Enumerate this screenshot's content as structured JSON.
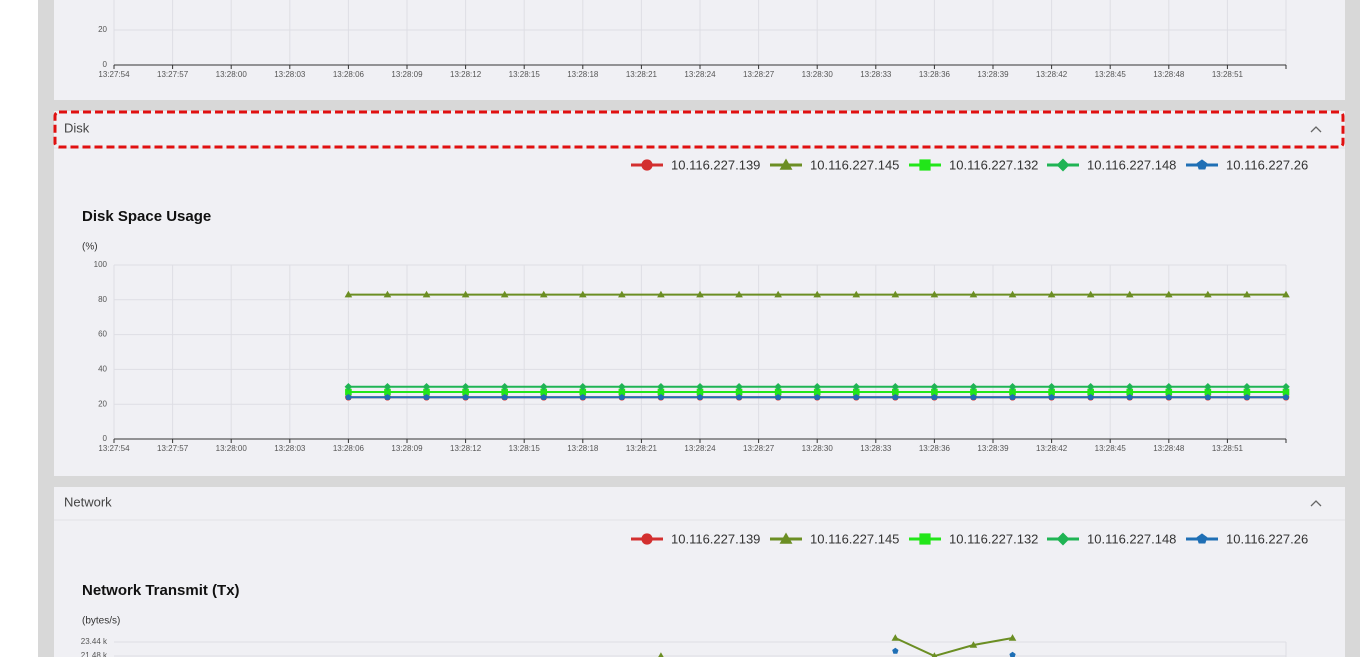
{
  "sections": [
    {
      "title": "Disk"
    },
    {
      "title": "Network"
    }
  ],
  "chart_data": [
    {
      "type": "line",
      "xlim": [
        "13:27:54",
        "13:28:54"
      ],
      "xticks": [
        "13:27:54",
        "13:27:57",
        "13:28:00",
        "13:28:03",
        "13:28:06",
        "13:28:09",
        "13:28:12",
        "13:28:15",
        "13:28:18",
        "13:28:21",
        "13:28:24",
        "13:28:27",
        "13:28:30",
        "13:28:33",
        "13:28:36",
        "13:28:39",
        "13:28:42",
        "13:28:45",
        "13:28:48",
        "13:28:51"
      ],
      "ylim": [
        0,
        100
      ],
      "yticks": [
        0,
        20
      ],
      "grid": true,
      "x": [],
      "series": []
    },
    {
      "type": "line",
      "title": "Disk Space Usage",
      "y_label": "(%)",
      "xlim": [
        "13:27:54",
        "13:28:54"
      ],
      "xticks": [
        "13:27:54",
        "13:27:57",
        "13:28:00",
        "13:28:03",
        "13:28:06",
        "13:28:09",
        "13:28:12",
        "13:28:15",
        "13:28:18",
        "13:28:21",
        "13:28:24",
        "13:28:27",
        "13:28:30",
        "13:28:33",
        "13:28:36",
        "13:28:39",
        "13:28:42",
        "13:28:45",
        "13:28:48",
        "13:28:51"
      ],
      "ylim": [
        0,
        100
      ],
      "yticks": [
        0,
        20,
        40,
        60,
        80,
        100
      ],
      "grid": true,
      "x": [
        "13:28:06",
        "13:28:08",
        "13:28:10",
        "13:28:12",
        "13:28:14",
        "13:28:16",
        "13:28:18",
        "13:28:20",
        "13:28:22",
        "13:28:24",
        "13:28:26",
        "13:28:28",
        "13:28:30",
        "13:28:32",
        "13:28:34",
        "13:28:36",
        "13:28:38",
        "13:28:40",
        "13:28:42",
        "13:28:44",
        "13:28:46",
        "13:28:48",
        "13:28:50",
        "13:28:52",
        "13:28:54"
      ],
      "series": [
        {
          "name": "10.116.227.139",
          "color": "#d32f2f",
          "marker": "circle",
          "values": [
            24,
            24,
            24,
            24,
            24,
            24,
            24,
            24,
            24,
            24,
            24,
            24,
            24,
            24,
            24,
            24,
            24,
            24,
            24,
            24,
            24,
            24,
            24,
            24,
            24
          ]
        },
        {
          "name": "10.116.227.145",
          "color": "#6b8e23",
          "marker": "triangle",
          "values": [
            83,
            83,
            83,
            83,
            83,
            83,
            83,
            83,
            83,
            83,
            83,
            83,
            83,
            83,
            83,
            83,
            83,
            83,
            83,
            83,
            83,
            83,
            83,
            83,
            83
          ]
        },
        {
          "name": "10.116.227.132",
          "color": "#22e619",
          "marker": "square",
          "values": [
            27,
            27,
            27,
            27,
            27,
            27,
            27,
            27,
            27,
            27,
            27,
            27,
            27,
            27,
            27,
            27,
            27,
            27,
            27,
            27,
            27,
            27,
            27,
            27,
            27
          ]
        },
        {
          "name": "10.116.227.148",
          "color": "#1fb454",
          "marker": "diamond",
          "values": [
            30,
            30,
            30,
            30,
            30,
            30,
            30,
            30,
            30,
            30,
            30,
            30,
            30,
            30,
            30,
            30,
            30,
            30,
            30,
            30,
            30,
            30,
            30,
            30,
            30
          ]
        },
        {
          "name": "10.116.227.26",
          "color": "#1f6fb5",
          "marker": "pentagon",
          "values": [
            24,
            24,
            24,
            24,
            24,
            24,
            24,
            24,
            24,
            24,
            24,
            24,
            24,
            24,
            24,
            24,
            24,
            24,
            24,
            24,
            24,
            24,
            24,
            24,
            24
          ]
        }
      ]
    },
    {
      "type": "line",
      "title": "Network Transmit (Tx)",
      "y_label": "(bytes/s)",
      "xlim": [
        "13:27:54",
        "13:28:54"
      ],
      "xticks": [],
      "ylim": [
        0,
        23440
      ],
      "yticks": [
        {
          "value": 23440,
          "label": "23.44 k"
        },
        {
          "value": 21480,
          "label": "21.48 k"
        }
      ],
      "grid": true,
      "x": [
        "13:28:06",
        "13:28:08",
        "13:28:10",
        "13:28:12",
        "13:28:14",
        "13:28:16",
        "13:28:18",
        "13:28:20",
        "13:28:22",
        "13:28:24",
        "13:28:26",
        "13:28:28",
        "13:28:30",
        "13:28:32",
        "13:28:34",
        "13:28:36",
        "13:28:38",
        "13:28:40",
        "13:28:42",
        "13:28:44",
        "13:28:46",
        "13:28:48",
        "13:28:50",
        "13:28:52",
        "13:28:54"
      ],
      "series": [
        {
          "name": "10.116.227.139",
          "color": "#d32f2f",
          "marker": "circle",
          "values": [
            null,
            null,
            null,
            null,
            null,
            null,
            null,
            null,
            null,
            null,
            null,
            null,
            null,
            null,
            null,
            null,
            null,
            null,
            null,
            null,
            null,
            null,
            null,
            null,
            null
          ]
        },
        {
          "name": "10.116.227.145",
          "color": "#6b8e23",
          "marker": "triangle",
          "values": [
            null,
            null,
            null,
            null,
            null,
            null,
            null,
            null,
            21480,
            null,
            null,
            null,
            null,
            null,
            24000,
            21480,
            23020,
            24000,
            null,
            null,
            null,
            null,
            null,
            null,
            null
          ]
        },
        {
          "name": "10.116.227.132",
          "color": "#22e619",
          "marker": "square",
          "values": [
            null,
            null,
            null,
            null,
            null,
            null,
            null,
            null,
            null,
            null,
            null,
            null,
            null,
            null,
            null,
            null,
            null,
            null,
            null,
            null,
            null,
            null,
            null,
            null,
            null
          ]
        },
        {
          "name": "10.116.227.148",
          "color": "#1fb454",
          "marker": "diamond",
          "values": [
            null,
            null,
            null,
            null,
            null,
            null,
            null,
            null,
            null,
            null,
            null,
            null,
            null,
            null,
            null,
            null,
            null,
            null,
            null,
            null,
            null,
            null,
            null,
            null,
            null
          ]
        },
        {
          "name": "10.116.227.26",
          "color": "#1f6fb5",
          "marker": "pentagon",
          "values": [
            null,
            null,
            null,
            null,
            null,
            null,
            null,
            null,
            null,
            null,
            null,
            null,
            null,
            null,
            22180,
            null,
            null,
            21620,
            null,
            null,
            null,
            null,
            null,
            null,
            null
          ]
        }
      ]
    }
  ]
}
